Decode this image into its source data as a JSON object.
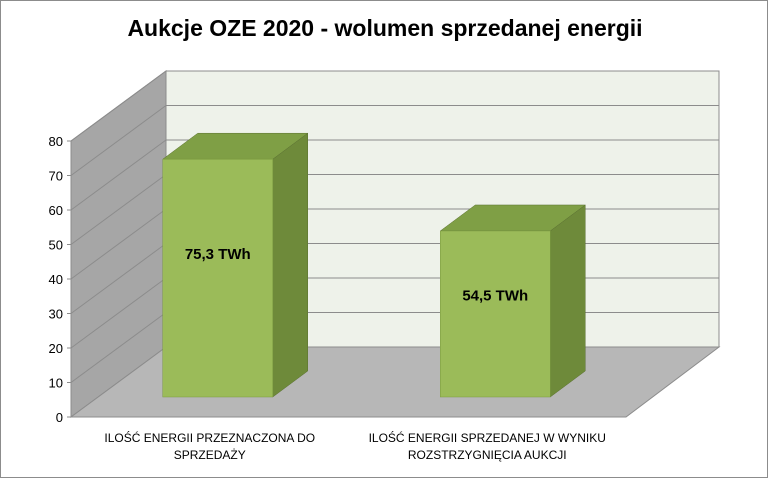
{
  "chart_data": {
    "type": "bar",
    "title": "Aukcje OZE 2020 - wolumen sprzedanej energii",
    "categories": [
      [
        "ILOŚĆ ENERGII PRZEZNACZONA DO",
        "SPRZEDAŻY"
      ],
      [
        "ILOŚĆ ENERGII SPRZEDANEJ W WYNIKU",
        "ROZSTRZYGNIĘCIA AUKCJI"
      ]
    ],
    "values": [
      75.3,
      54.5
    ],
    "data_labels": [
      "75,3 TWh",
      "54,5 TWh"
    ],
    "ylim": [
      0,
      80
    ],
    "yticks": [
      "0",
      "10",
      "20",
      "30",
      "40",
      "50",
      "60",
      "70",
      "80"
    ],
    "grid": true,
    "three_d": true,
    "legend": "none",
    "colors": {
      "bar_front": "#9bbb59",
      "bar_side": "#6e8a3a",
      "bar_top": "#7f9f45",
      "back_wall": "#eef2ea",
      "side_wall": "#a6a6a6",
      "floor": "#b7b7b7",
      "grid": "#8c8c8c"
    }
  }
}
